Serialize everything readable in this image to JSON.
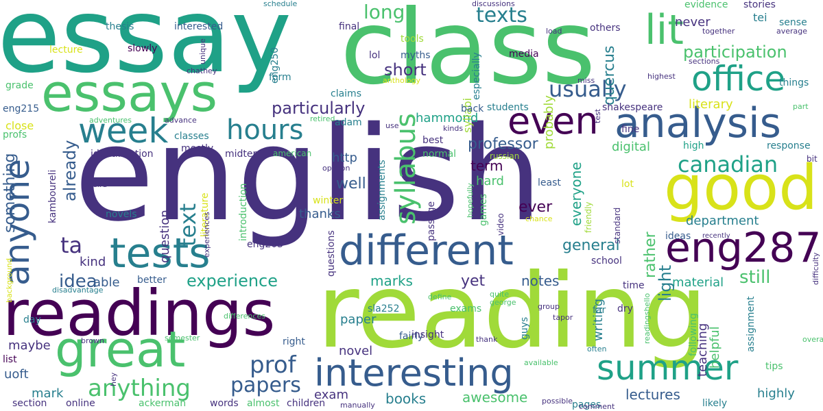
{
  "palette": [
    "#440154",
    "#46327e",
    "#365c8d",
    "#277f8e",
    "#1fa187",
    "#4ac16d",
    "#a0da39",
    "#fde725"
  ],
  "words": [
    {
      "text": "essay",
      "color": "#1fa187"
    },
    {
      "text": "class",
      "color": "#4ac16d"
    },
    {
      "text": "english",
      "color": "#46327e"
    },
    {
      "text": "reading",
      "color": "#a0da39"
    },
    {
      "text": "essays",
      "color": "#4ac16d"
    },
    {
      "text": "readings",
      "color": "#440154"
    },
    {
      "text": "good",
      "color": "#d8e219"
    },
    {
      "text": "great",
      "color": "#4ac16d"
    },
    {
      "text": "different",
      "color": "#365c8d"
    },
    {
      "text": "analysis",
      "color": "#365c8d"
    },
    {
      "text": "tests",
      "color": "#277f8e"
    },
    {
      "text": "interesting",
      "color": "#365c8d"
    },
    {
      "text": "eng287",
      "color": "#440154"
    },
    {
      "text": "office",
      "color": "#1fa187"
    },
    {
      "text": "summer",
      "color": "#1fa187"
    },
    {
      "text": "anyone",
      "color": "#365c8d"
    },
    {
      "text": "even",
      "color": "#440154"
    },
    {
      "text": "week",
      "color": "#277f8e"
    },
    {
      "text": "hours",
      "color": "#277f8e"
    },
    {
      "text": "lit",
      "color": "#4ac16d"
    },
    {
      "text": "syllabus",
      "color": "#4ac16d"
    },
    {
      "text": "texts",
      "color": "#277f8e"
    },
    {
      "text": "usually",
      "color": "#365c8d"
    },
    {
      "text": "canadian",
      "color": "#1fa187"
    },
    {
      "text": "papers",
      "color": "#365c8d"
    },
    {
      "text": "anything",
      "color": "#4ac16d"
    },
    {
      "text": "prof",
      "color": "#365c8d"
    },
    {
      "text": "text",
      "color": "#277f8e"
    },
    {
      "text": "long",
      "color": "#4ac16d"
    },
    {
      "text": "short",
      "color": "#46327e"
    },
    {
      "text": "particularly",
      "color": "#46327e"
    },
    {
      "text": "participation",
      "color": "#4ac16d"
    },
    {
      "text": "professor",
      "color": "#365c8d"
    },
    {
      "text": "experience",
      "color": "#1fa187"
    },
    {
      "text": "general",
      "color": "#277f8e"
    },
    {
      "text": "idea",
      "color": "#365c8d"
    },
    {
      "text": "ta",
      "color": "#46327e"
    },
    {
      "text": "already",
      "color": "#365c8d"
    },
    {
      "text": "something",
      "color": "#365c8d"
    },
    {
      "text": "still",
      "color": "#4ac16d"
    },
    {
      "text": "quercus",
      "color": "#277f8e"
    },
    {
      "text": "light",
      "color": "#277f8e"
    },
    {
      "text": "notes",
      "color": "#365c8d"
    },
    {
      "text": "marks",
      "color": "#1fa187"
    },
    {
      "text": "yet",
      "color": "#46327e"
    },
    {
      "text": "ever",
      "color": "#440154"
    },
    {
      "text": "rather",
      "color": "#4ac16d"
    },
    {
      "text": "well",
      "color": "#365c8d"
    },
    {
      "text": "department",
      "color": "#277f8e"
    },
    {
      "text": "everyone",
      "color": "#1fa187"
    },
    {
      "text": "term",
      "color": "#440154"
    },
    {
      "text": "hard",
      "color": "#4ac16d"
    },
    {
      "text": "literary",
      "color": "#d8e219"
    },
    {
      "text": "http",
      "color": "#365c8d"
    },
    {
      "text": "digital",
      "color": "#4ac16d"
    },
    {
      "text": "hammond",
      "color": "#1fa187"
    },
    {
      "text": "material",
      "color": "#1fa187"
    },
    {
      "text": "kind",
      "color": "#46327e"
    },
    {
      "text": "able",
      "color": "#365c8d"
    },
    {
      "text": "uoft",
      "color": "#365c8d"
    },
    {
      "text": "maybe",
      "color": "#46327e"
    },
    {
      "text": "highly",
      "color": "#277f8e"
    },
    {
      "text": "lectures",
      "color": "#365c8d"
    },
    {
      "text": "books",
      "color": "#277f8e"
    },
    {
      "text": "awesome",
      "color": "#4ac16d"
    },
    {
      "text": "exam",
      "color": "#46327e"
    },
    {
      "text": "paper",
      "color": "#277f8e"
    },
    {
      "text": "novel",
      "color": "#46327e"
    },
    {
      "text": "thanks",
      "color": "#365c8d"
    },
    {
      "text": "question",
      "color": "#46327e"
    },
    {
      "text": "never",
      "color": "#46327e"
    },
    {
      "text": "probably",
      "color": "#a0da39"
    },
    {
      "text": "writing",
      "color": "#277f8e"
    },
    {
      "text": "teaching",
      "color": "#46327e"
    },
    {
      "text": "helpful",
      "color": "#4ac16d"
    },
    {
      "text": "mark",
      "color": "#277f8e"
    },
    {
      "text": "thesis",
      "color": "#277f8e"
    },
    {
      "text": "interested",
      "color": "#365c8d"
    },
    {
      "text": "final",
      "color": "#46327e"
    },
    {
      "text": "tools",
      "color": "#a0da39"
    },
    {
      "text": "lol",
      "color": "#46327e"
    },
    {
      "text": "myths",
      "color": "#365c8d"
    },
    {
      "text": "media",
      "color": "#440154"
    },
    {
      "text": "lecture",
      "color": "#d8e219"
    },
    {
      "text": "slowly",
      "color": "#440154"
    },
    {
      "text": "eng250",
      "color": "#277f8e"
    },
    {
      "text": "form",
      "color": "#277f8e"
    },
    {
      "text": "claims",
      "color": "#277f8e"
    },
    {
      "text": "especially",
      "color": "#277f8e"
    },
    {
      "text": "syllabi",
      "color": "#a0da39"
    },
    {
      "text": "back",
      "color": "#365c8d"
    },
    {
      "text": "students",
      "color": "#277f8e"
    },
    {
      "text": "shakespeare",
      "color": "#46327e"
    },
    {
      "text": "grade",
      "color": "#4ac16d"
    },
    {
      "text": "eng215",
      "color": "#365c8d"
    },
    {
      "text": "close",
      "color": "#d8e219"
    },
    {
      "text": "profs",
      "color": "#4ac16d"
    },
    {
      "text": "adam",
      "color": "#277f8e"
    },
    {
      "text": "classes",
      "color": "#277f8e"
    },
    {
      "text": "mostly",
      "color": "#46327e"
    },
    {
      "text": "identification",
      "color": "#46327e"
    },
    {
      "text": "midterm",
      "color": "#46327e"
    },
    {
      "text": "american",
      "color": "#4ac16d"
    },
    {
      "text": "best",
      "color": "#46327e"
    },
    {
      "text": "normal",
      "color": "#4ac16d"
    },
    {
      "text": "evidence",
      "color": "#4ac16d"
    },
    {
      "text": "stories",
      "color": "#46327e"
    },
    {
      "text": "sense",
      "color": "#277f8e"
    },
    {
      "text": "tei",
      "color": "#277f8e"
    },
    {
      "text": "others",
      "color": "#46327e"
    },
    {
      "text": "things",
      "color": "#277f8e"
    },
    {
      "text": "high",
      "color": "#1fa187"
    },
    {
      "text": "response",
      "color": "#277f8e"
    },
    {
      "text": "bit",
      "color": "#46327e"
    },
    {
      "text": "fine",
      "color": "#46327e"
    },
    {
      "text": "ideas",
      "color": "#365c8d"
    },
    {
      "text": "school",
      "color": "#46327e"
    },
    {
      "text": "time",
      "color": "#46327e"
    },
    {
      "text": "dry",
      "color": "#46327e"
    },
    {
      "text": "far",
      "color": "#277f8e"
    },
    {
      "text": "least",
      "color": "#365c8d"
    },
    {
      "text": "lot",
      "color": "#d8e219"
    },
    {
      "text": "standard",
      "color": "#46327e"
    },
    {
      "text": "following",
      "color": "#4ac16d"
    },
    {
      "text": "assignment",
      "color": "#277f8e"
    },
    {
      "text": "better",
      "color": "#365c8d"
    },
    {
      "text": "day",
      "color": "#277f8e"
    },
    {
      "text": "list",
      "color": "#440154"
    },
    {
      "text": "section",
      "color": "#46327e"
    },
    {
      "text": "online",
      "color": "#46327e"
    },
    {
      "text": "words",
      "color": "#46327e"
    },
    {
      "text": "almost",
      "color": "#4ac16d"
    },
    {
      "text": "children",
      "color": "#46327e"
    },
    {
      "text": "ackerman",
      "color": "#4ac16d"
    },
    {
      "text": "introduction",
      "color": "#4ac16d"
    },
    {
      "text": "literature",
      "color": "#d8e219"
    },
    {
      "text": "winter",
      "color": "#d8e219"
    },
    {
      "text": "novels",
      "color": "#277f8e"
    },
    {
      "text": "kamboureli",
      "color": "#46327e"
    },
    {
      "text": "eng205",
      "color": "#46327e"
    },
    {
      "text": "assignments",
      "color": "#277f8e"
    },
    {
      "text": "passage",
      "color": "#46327e"
    },
    {
      "text": "questions",
      "color": "#46327e"
    },
    {
      "text": "exams",
      "color": "#4ac16d"
    },
    {
      "text": "sla252",
      "color": "#277f8e"
    },
    {
      "text": "fairly",
      "color": "#365c8d"
    },
    {
      "text": "insight",
      "color": "#46327e"
    },
    {
      "text": "right",
      "color": "#365c8d"
    },
    {
      "text": "guys",
      "color": "#277f8e"
    },
    {
      "text": "pages",
      "color": "#277f8e"
    },
    {
      "text": "likely",
      "color": "#277f8e"
    },
    {
      "text": "tips",
      "color": "#4ac16d"
    },
    {
      "text": "russian",
      "color": "#a0da39"
    },
    {
      "text": "games",
      "color": "#4ac16d"
    },
    {
      "text": "video",
      "color": "#46327e"
    },
    {
      "text": "hopefully",
      "color": "#4ac16d"
    },
    {
      "text": "friendly",
      "color": "#a0da39"
    },
    {
      "text": "chance",
      "color": "#d8e219"
    },
    {
      "text": "recently",
      "color": "#46327e"
    },
    {
      "text": "difficulty",
      "color": "#46327e"
    },
    {
      "text": "readingshello",
      "color": "#4ac16d"
    },
    {
      "text": "often",
      "color": "#277f8e"
    },
    {
      "text": "overall",
      "color": "#4ac16d"
    },
    {
      "text": "thank",
      "color": "#46327e"
    },
    {
      "text": "tapor",
      "color": "#46327e"
    },
    {
      "text": "quite",
      "color": "#4ac16d"
    },
    {
      "text": "george",
      "color": "#4ac16d"
    },
    {
      "text": "group",
      "color": "#46327e"
    },
    {
      "text": "define",
      "color": "#4ac16d"
    },
    {
      "text": "available",
      "color": "#4ac16d"
    },
    {
      "text": "possible",
      "color": "#46327e"
    },
    {
      "text": "comment",
      "color": "#46327e"
    },
    {
      "text": "manually",
      "color": "#46327e"
    },
    {
      "text": "hey",
      "color": "#46327e"
    },
    {
      "text": "brown",
      "color": "#46327e"
    },
    {
      "text": "semester",
      "color": "#4ac16d"
    },
    {
      "text": "differences",
      "color": "#4ac16d"
    },
    {
      "text": "disadvantage",
      "color": "#277f8e"
    },
    {
      "text": "background",
      "color": "#d8e219"
    },
    {
      "text": "weird",
      "color": "#46327e"
    },
    {
      "text": "opinion",
      "color": "#46327e"
    },
    {
      "text": "experiences",
      "color": "#46327e"
    },
    {
      "text": "schedule",
      "color": "#277f8e"
    },
    {
      "text": "discussions",
      "color": "#46327e"
    },
    {
      "text": "unique",
      "color": "#46327e"
    },
    {
      "text": "chathey",
      "color": "#46327e"
    },
    {
      "text": "anthology",
      "color": "#d8e219"
    },
    {
      "text": "load",
      "color": "#46327e"
    },
    {
      "text": "miss",
      "color": "#46327e"
    },
    {
      "text": "highest",
      "color": "#46327e"
    },
    {
      "text": "together",
      "color": "#46327e"
    },
    {
      "text": "average",
      "color": "#46327e"
    },
    {
      "text": "sections",
      "color": "#46327e"
    },
    {
      "text": "part",
      "color": "#4ac16d"
    },
    {
      "text": "test",
      "color": "#46327e"
    },
    {
      "text": "kinds",
      "color": "#46327e"
    },
    {
      "text": "retired",
      "color": "#4ac16d"
    },
    {
      "text": "use",
      "color": "#46327e"
    },
    {
      "text": "adventures",
      "color": "#4ac16d"
    },
    {
      "text": "advance",
      "color": "#46327e"
    }
  ]
}
